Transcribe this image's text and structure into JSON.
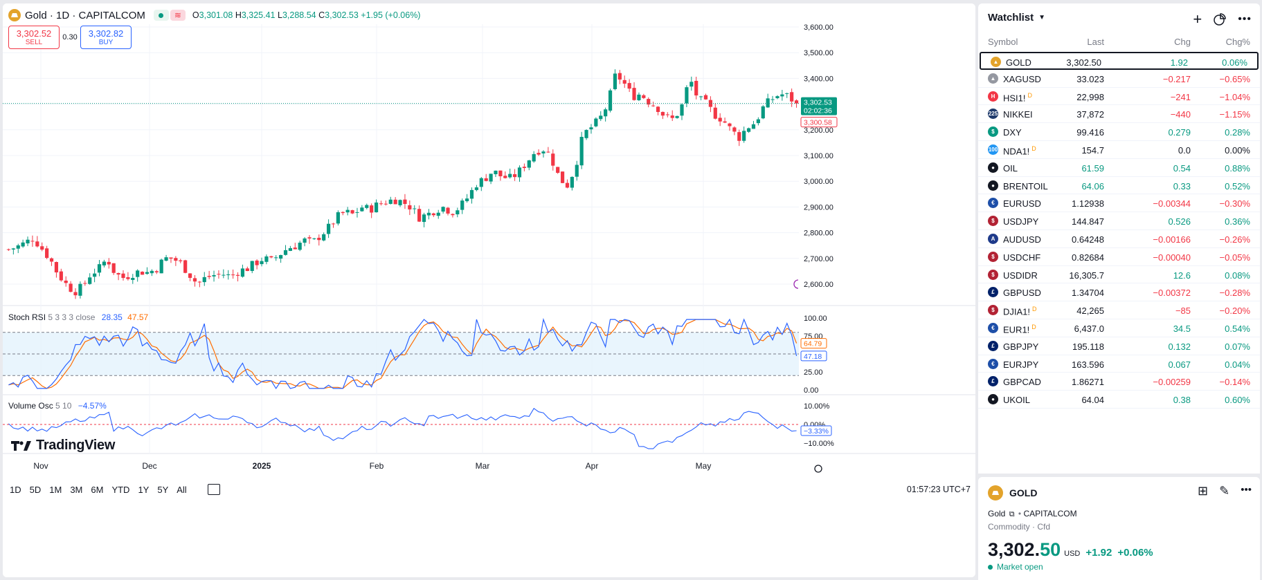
{
  "symbol_title": "Gold · 1D · CAPITALCOM",
  "ohlc": {
    "o_label": "O",
    "o": "3,301.08",
    "h_label": "H",
    "h": "3,325.41",
    "l_label": "L",
    "l": "3,288.54",
    "c_label": "C",
    "c": "3,302.53",
    "change": "+1.95 (+0.06%)"
  },
  "trade": {
    "sell_price": "3,302.52",
    "sell_label": "SELL",
    "spread": "0.30",
    "buy_price": "3,302.82",
    "buy_label": "BUY"
  },
  "price_axis": [
    "3,600.00",
    "3,500.00",
    "3,400.00",
    "3,300.00",
    "3,200.00",
    "3,100.00",
    "3,000.00",
    "2,900.00",
    "2,800.00",
    "2,700.00",
    "2,600.00"
  ],
  "price_tags": {
    "last": "3,302.53",
    "countdown": "02:02:36",
    "bid": "3,300.58"
  },
  "stoch": {
    "label": "Stoch RSI",
    "params": "5 3 3 3 close",
    "k": "28.35",
    "d": "47.57",
    "axis": [
      "100.00",
      "75.00",
      "50.00",
      "25.00",
      "0.00"
    ],
    "tag_d": "64.79",
    "tag_k": "47.18"
  },
  "volosc": {
    "label": "Volume Osc",
    "params": "5 10",
    "value": "−4.57%",
    "axis": [
      "10.00%",
      "0.00%",
      "−10.00%"
    ],
    "tag": "−3.33%"
  },
  "time_axis": [
    "Nov",
    "Dec",
    "2025",
    "Feb",
    "Mar",
    "Apr",
    "May"
  ],
  "brand": "TradingView",
  "ranges": [
    "1D",
    "5D",
    "1M",
    "3M",
    "6M",
    "YTD",
    "1Y",
    "5Y",
    "All"
  ],
  "clock": "01:57:23 UTC+7",
  "colors": {
    "up": "#089981",
    "down": "#f23645",
    "stoch_k": "#2962ff",
    "stoch_d": "#ff6d00",
    "gold": "#e3a32b"
  },
  "chart_data": {
    "type": "candlestick",
    "title": "Gold · 1D · CAPITALCOM",
    "ylim": [
      2540,
      3600
    ],
    "x_labels": [
      "Nov",
      "Dec",
      "2025",
      "Feb",
      "Mar",
      "Apr",
      "May"
    ],
    "close_path": [
      2735,
      2745,
      2760,
      2780,
      2740,
      2700,
      2640,
      2600,
      2570,
      2590,
      2640,
      2660,
      2700,
      2640,
      2625,
      2640,
      2650,
      2645,
      2660,
      2700,
      2700,
      2680,
      2640,
      2600,
      2625,
      2635,
      2640,
      2630,
      2650,
      2660,
      2680,
      2700,
      2690,
      2715,
      2740,
      2750,
      2770,
      2760,
      2790,
      2820,
      2860,
      2880,
      2870,
      2900,
      2890,
      2910,
      2920,
      2930,
      2920,
      2900,
      2860,
      2870,
      2890,
      2900,
      2880,
      2900,
      2940,
      2990,
      3010,
      3040,
      3020,
      3010,
      3030,
      3070,
      3110,
      3130,
      3100,
      3020,
      2980,
      3050,
      3180,
      3210,
      3240,
      3300,
      3420,
      3380,
      3330,
      3340,
      3310,
      3290,
      3250,
      3240,
      3290,
      3400,
      3320,
      3300,
      3260,
      3240,
      3200,
      3170,
      3210,
      3230,
      3290,
      3320,
      3340,
      3330,
      3302
    ]
  },
  "watchlist": {
    "title": "Watchlist",
    "columns": {
      "symbol": "Symbol",
      "last": "Last",
      "chg": "Chg",
      "pct": "Chg%"
    },
    "rows": [
      {
        "icon": "gold",
        "sym": "GOLD",
        "sup": "",
        "last": "3,302.50",
        "chg": "1.92",
        "pct": "0.06%",
        "dir": "up",
        "color": "#e3a32b",
        "glyph": "▲"
      },
      {
        "icon": "silver",
        "sym": "XAGUSD",
        "sup": "",
        "last": "33.023",
        "chg": "−0.217",
        "pct": "−0.65%",
        "dir": "dn",
        "color": "#9598a1",
        "glyph": "▲"
      },
      {
        "icon": "hsi",
        "sym": "HSI1!",
        "sup": "D",
        "last": "22,998",
        "chg": "−241",
        "pct": "−1.04%",
        "dir": "dn",
        "color": "#f23645",
        "glyph": "H"
      },
      {
        "icon": "nikkei",
        "sym": "NIKKEI",
        "sup": "",
        "last": "37,872",
        "chg": "−440",
        "pct": "−1.15%",
        "dir": "dn",
        "color": "#1e3a6b",
        "glyph": "225"
      },
      {
        "icon": "dxy",
        "sym": "DXY",
        "sup": "",
        "last": "99.416",
        "chg": "0.279",
        "pct": "0.28%",
        "dir": "up",
        "color": "#089981",
        "glyph": "$"
      },
      {
        "icon": "nda",
        "sym": "NDA1!",
        "sup": "D",
        "last": "154.7",
        "chg": "0.0",
        "pct": "0.00%",
        "dir": "flat",
        "color": "#2196f3",
        "glyph": "100"
      },
      {
        "icon": "oil",
        "sym": "OIL",
        "sup": "",
        "last": "61.59",
        "chg": "0.54",
        "pct": "0.88%",
        "dir": "up",
        "color": "#131722",
        "glyph": "●"
      },
      {
        "icon": "brent",
        "sym": "BRENTOIL",
        "sup": "",
        "last": "64.06",
        "chg": "0.33",
        "pct": "0.52%",
        "dir": "up",
        "color": "#131722",
        "glyph": "●"
      },
      {
        "icon": "eur-flag",
        "sym": "EURUSD",
        "sup": "",
        "last": "1.12938",
        "chg": "−0.00344",
        "pct": "−0.30%",
        "dir": "dn",
        "color": "#1e4fa8",
        "glyph": "€"
      },
      {
        "icon": "usd-flag",
        "sym": "USDJPY",
        "sup": "",
        "last": "144.847",
        "chg": "0.526",
        "pct": "0.36%",
        "dir": "up",
        "color": "#b22234",
        "glyph": "$"
      },
      {
        "icon": "aud-flag",
        "sym": "AUDUSD",
        "sup": "",
        "last": "0.64248",
        "chg": "−0.00166",
        "pct": "−0.26%",
        "dir": "dn",
        "color": "#1e3a8a",
        "glyph": "A"
      },
      {
        "icon": "usd-flag",
        "sym": "USDCHF",
        "sup": "",
        "last": "0.82684",
        "chg": "−0.00040",
        "pct": "−0.05%",
        "dir": "dn",
        "color": "#b22234",
        "glyph": "$"
      },
      {
        "icon": "usd-flag",
        "sym": "USDIDR",
        "sup": "",
        "last": "16,305.7",
        "chg": "12.6",
        "pct": "0.08%",
        "dir": "up",
        "color": "#b22234",
        "glyph": "$"
      },
      {
        "icon": "gbp-flag",
        "sym": "GBPUSD",
        "sup": "",
        "last": "1.34704",
        "chg": "−0.00372",
        "pct": "−0.28%",
        "dir": "dn",
        "color": "#012169",
        "glyph": "£"
      },
      {
        "icon": "usd-flag",
        "sym": "DJIA1!",
        "sup": "D",
        "last": "42,265",
        "chg": "−85",
        "pct": "−0.20%",
        "dir": "dn",
        "color": "#b22234",
        "glyph": "$"
      },
      {
        "icon": "eu-flag",
        "sym": "EUR1!",
        "sup": "D",
        "last": "6,437.0",
        "chg": "34.5",
        "pct": "0.54%",
        "dir": "up",
        "color": "#1e4fa8",
        "glyph": "€"
      },
      {
        "icon": "gbp-flag",
        "sym": "GBPJPY",
        "sup": "",
        "last": "195.118",
        "chg": "0.132",
        "pct": "0.07%",
        "dir": "up",
        "color": "#012169",
        "glyph": "£"
      },
      {
        "icon": "eur-flag",
        "sym": "EURJPY",
        "sup": "",
        "last": "163.596",
        "chg": "0.067",
        "pct": "0.04%",
        "dir": "up",
        "color": "#1e4fa8",
        "glyph": "€"
      },
      {
        "icon": "gbp-flag",
        "sym": "GBPCAD",
        "sup": "",
        "last": "1.86271",
        "chg": "−0.00259",
        "pct": "−0.14%",
        "dir": "dn",
        "color": "#012169",
        "glyph": "£"
      },
      {
        "icon": "ukoil",
        "sym": "UKOIL",
        "sup": "",
        "last": "64.04",
        "chg": "0.38",
        "pct": "0.60%",
        "dir": "up",
        "color": "#131722",
        "glyph": "●"
      }
    ]
  },
  "detail": {
    "symbol": "GOLD",
    "name": "Gold",
    "exchange": "CAPITALCOM",
    "category": "Commodity · Cfd",
    "price_main": "3,302.",
    "price_tail": "50",
    "currency": "USD",
    "change": "+1.92",
    "change_pct": "+0.06%",
    "market_status": "Market open"
  }
}
